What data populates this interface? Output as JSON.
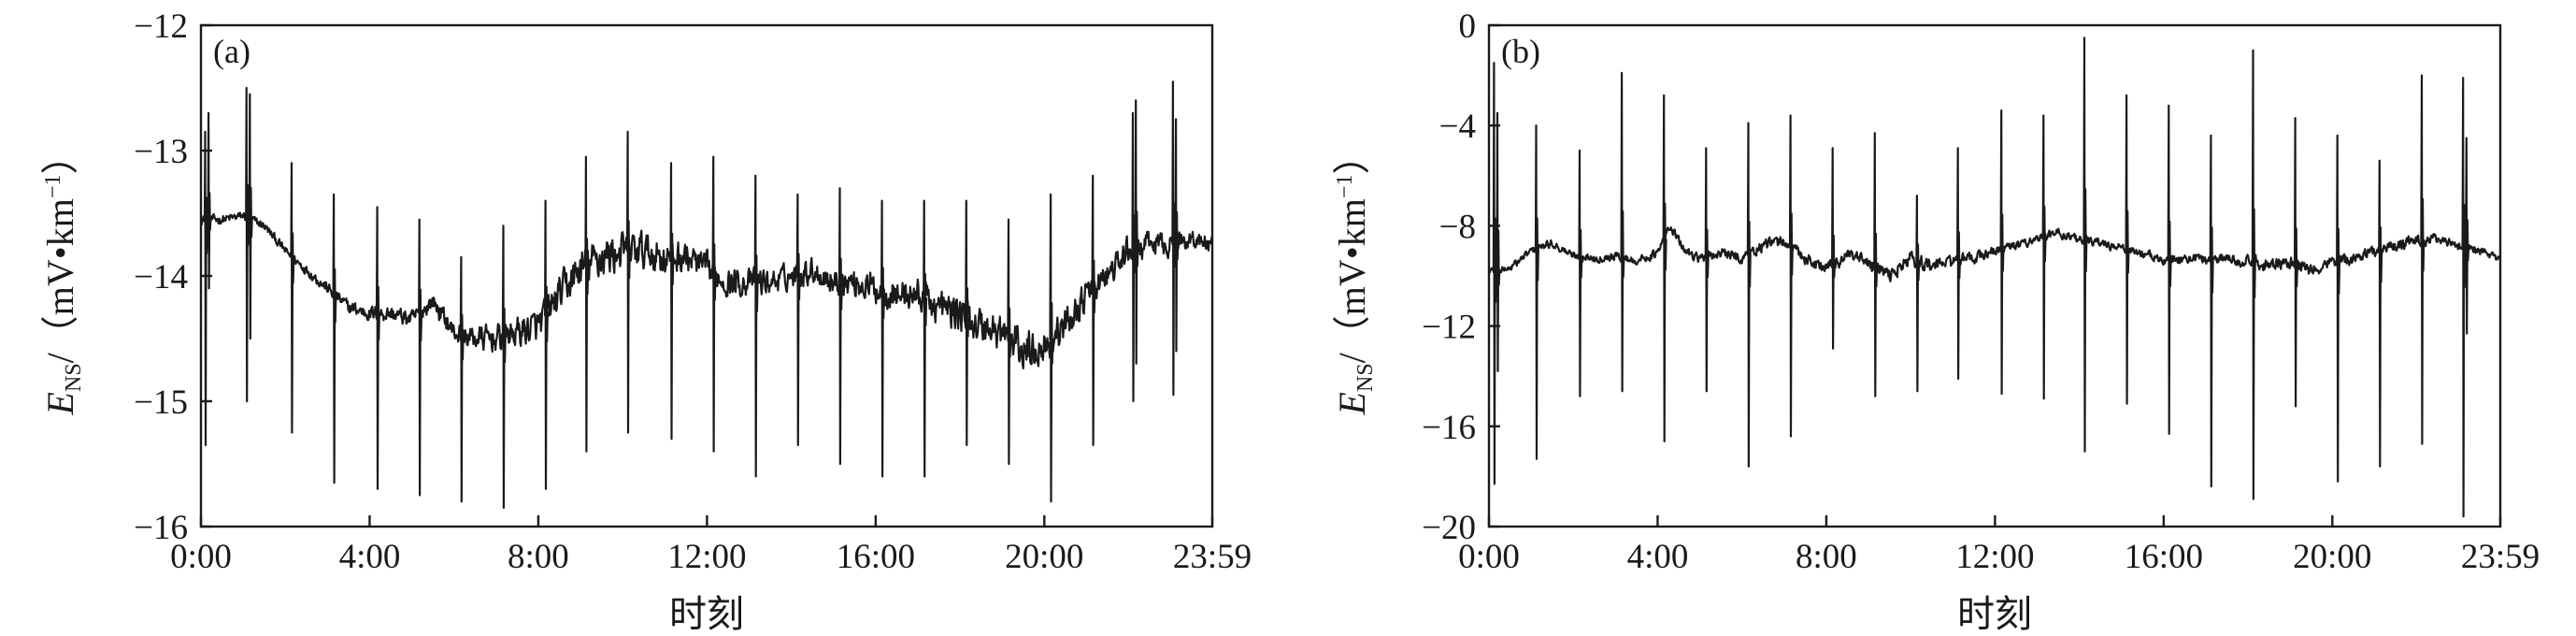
{
  "chart_data": [
    {
      "type": "line",
      "panel_label": "(a)",
      "xlabel": "时刻",
      "ylabel": {
        "main": "E",
        "sub": "NS",
        "rest": "/（mV•km",
        "sup": "−1",
        "close": "）"
      },
      "x_ticks": [
        "0:00",
        "4:00",
        "8:00",
        "12:00",
        "16:00",
        "20:00",
        "23:59"
      ],
      "x_tick_hours": [
        0,
        4,
        8,
        12,
        16,
        20,
        23.983
      ],
      "xlim": [
        0,
        23.983
      ],
      "y_ticks": [
        "−12",
        "−13",
        "−14",
        "−15",
        "−16"
      ],
      "y_tick_values": [
        -12,
        -13,
        -14,
        -15,
        -16
      ],
      "ylim": [
        -16,
        -12
      ],
      "baseline": [
        [
          0.0,
          -13.55
        ],
        [
          0.5,
          -13.55
        ],
        [
          1.0,
          -13.52
        ],
        [
          1.5,
          -13.6
        ],
        [
          2.0,
          -13.8
        ],
        [
          2.5,
          -13.95
        ],
        [
          3.0,
          -14.1
        ],
        [
          3.5,
          -14.25
        ],
        [
          4.0,
          -14.3
        ],
        [
          4.5,
          -14.3
        ],
        [
          5.0,
          -14.35
        ],
        [
          5.5,
          -14.2
        ],
        [
          6.0,
          -14.45
        ],
        [
          6.5,
          -14.5
        ],
        [
          7.0,
          -14.5
        ],
        [
          7.5,
          -14.45
        ],
        [
          8.0,
          -14.4
        ],
        [
          8.5,
          -14.15
        ],
        [
          9.0,
          -13.95
        ],
        [
          9.5,
          -13.85
        ],
        [
          10.0,
          -13.8
        ],
        [
          10.5,
          -13.8
        ],
        [
          11.0,
          -13.85
        ],
        [
          11.5,
          -13.85
        ],
        [
          12.0,
          -13.95
        ],
        [
          12.5,
          -14.05
        ],
        [
          13.0,
          -14.05
        ],
        [
          13.5,
          -14.05
        ],
        [
          14.0,
          -14.0
        ],
        [
          14.5,
          -13.95
        ],
        [
          15.0,
          -14.05
        ],
        [
          15.5,
          -14.05
        ],
        [
          16.0,
          -14.1
        ],
        [
          16.5,
          -14.15
        ],
        [
          17.0,
          -14.15
        ],
        [
          17.5,
          -14.25
        ],
        [
          18.0,
          -14.3
        ],
        [
          18.5,
          -14.4
        ],
        [
          19.0,
          -14.45
        ],
        [
          19.5,
          -14.6
        ],
        [
          20.0,
          -14.55
        ],
        [
          20.5,
          -14.4
        ],
        [
          21.0,
          -14.15
        ],
        [
          21.5,
          -14.0
        ],
        [
          22.0,
          -13.8
        ],
        [
          22.5,
          -13.75
        ],
        [
          23.0,
          -13.75
        ],
        [
          23.5,
          -13.7
        ],
        [
          23.98,
          -13.75
        ]
      ],
      "noise_amplitude": [
        [
          0,
          0.03
        ],
        [
          2,
          0.03
        ],
        [
          4,
          0.05
        ],
        [
          5.5,
          0.06
        ],
        [
          7,
          0.09
        ],
        [
          8.5,
          0.12
        ],
        [
          9.5,
          0.14
        ],
        [
          11,
          0.12
        ],
        [
          12,
          0.1
        ],
        [
          14,
          0.08
        ],
        [
          16,
          0.1
        ],
        [
          18,
          0.12
        ],
        [
          19.5,
          0.13
        ],
        [
          21,
          0.1
        ],
        [
          22.5,
          0.08
        ],
        [
          23.98,
          0.06
        ]
      ],
      "spikes": [
        {
          "t": 0.1,
          "peak": -12.85,
          "trough": -15.35
        },
        {
          "t": 0.18,
          "peak": -12.7,
          "trough": -14.1
        },
        {
          "t": 1.08,
          "peak": -12.5,
          "trough": -15.0
        },
        {
          "t": 1.16,
          "peak": -12.55,
          "trough": -14.5
        },
        {
          "t": 2.15,
          "peak": -13.1,
          "trough": -15.25
        },
        {
          "t": 3.15,
          "peak": -13.35,
          "trough": -15.65
        },
        {
          "t": 4.18,
          "peak": -13.45,
          "trough": -15.7
        },
        {
          "t": 5.18,
          "peak": -13.55,
          "trough": -15.75
        },
        {
          "t": 6.17,
          "peak": -13.85,
          "trough": -15.8
        },
        {
          "t": 7.17,
          "peak": -13.6,
          "trough": -15.85
        },
        {
          "t": 8.17,
          "peak": -13.4,
          "trough": -15.7
        },
        {
          "t": 9.13,
          "peak": -13.05,
          "trough": -15.4
        },
        {
          "t": 10.12,
          "peak": -12.85,
          "trough": -15.25
        },
        {
          "t": 11.15,
          "peak": -13.1,
          "trough": -15.3
        },
        {
          "t": 12.15,
          "peak": -13.05,
          "trough": -15.4
        },
        {
          "t": 13.15,
          "peak": -13.2,
          "trough": -15.6
        },
        {
          "t": 14.15,
          "peak": -13.35,
          "trough": -15.35
        },
        {
          "t": 15.15,
          "peak": -13.3,
          "trough": -15.5
        },
        {
          "t": 16.15,
          "peak": -13.4,
          "trough": -15.6
        },
        {
          "t": 17.15,
          "peak": -13.4,
          "trough": -15.6
        },
        {
          "t": 18.15,
          "peak": -13.4,
          "trough": -15.35
        },
        {
          "t": 19.15,
          "peak": -13.55,
          "trough": -15.5
        },
        {
          "t": 20.15,
          "peak": -13.35,
          "trough": -15.8
        },
        {
          "t": 21.15,
          "peak": -13.2,
          "trough": -15.35
        },
        {
          "t": 22.1,
          "peak": -12.7,
          "trough": -15.0
        },
        {
          "t": 22.17,
          "peak": -12.6,
          "trough": -14.7
        },
        {
          "t": 23.05,
          "peak": -12.45,
          "trough": -14.95
        },
        {
          "t": 23.12,
          "peak": -12.75,
          "trough": -14.6
        }
      ]
    },
    {
      "type": "line",
      "panel_label": "(b)",
      "xlabel": "时刻",
      "ylabel": {
        "main": "E",
        "sub": "NS",
        "rest": "/（mV•km",
        "sup": "−1",
        "close": "）"
      },
      "x_ticks": [
        "0:00",
        "4:00",
        "8:00",
        "12:00",
        "16:00",
        "20:00",
        "23:59"
      ],
      "x_tick_hours": [
        0,
        4,
        8,
        12,
        16,
        20,
        23.983
      ],
      "xlim": [
        0,
        23.983
      ],
      "y_ticks": [
        "0",
        "−4",
        "−8",
        "−12",
        "−16",
        "−20"
      ],
      "y_tick_values": [
        0,
        -4,
        -8,
        -12,
        -16,
        -20
      ],
      "ylim": [
        -20,
        0
      ],
      "baseline": [
        [
          0.0,
          -9.8
        ],
        [
          0.5,
          -9.7
        ],
        [
          1.0,
          -9.0
        ],
        [
          1.5,
          -8.7
        ],
        [
          2.0,
          -9.2
        ],
        [
          2.5,
          -9.3
        ],
        [
          3.0,
          -9.2
        ],
        [
          3.5,
          -9.4
        ],
        [
          4.0,
          -9.1
        ],
        [
          4.3,
          -8.0
        ],
        [
          4.6,
          -8.9
        ],
        [
          5.0,
          -9.3
        ],
        [
          5.5,
          -9.1
        ],
        [
          6.0,
          -9.3
        ],
        [
          6.5,
          -8.8
        ],
        [
          7.0,
          -8.6
        ],
        [
          7.5,
          -9.3
        ],
        [
          8.0,
          -9.7
        ],
        [
          8.5,
          -9.2
        ],
        [
          9.0,
          -9.5
        ],
        [
          9.5,
          -10.0
        ],
        [
          10.0,
          -9.3
        ],
        [
          10.5,
          -9.6
        ],
        [
          11.0,
          -9.4
        ],
        [
          11.5,
          -9.3
        ],
        [
          12.0,
          -9.0
        ],
        [
          12.5,
          -8.8
        ],
        [
          13.0,
          -8.5
        ],
        [
          13.5,
          -8.3
        ],
        [
          14.0,
          -8.5
        ],
        [
          14.5,
          -8.7
        ],
        [
          15.0,
          -8.9
        ],
        [
          15.5,
          -9.1
        ],
        [
          16.0,
          -9.4
        ],
        [
          16.5,
          -9.3
        ],
        [
          17.0,
          -9.3
        ],
        [
          17.5,
          -9.3
        ],
        [
          18.0,
          -9.4
        ],
        [
          18.5,
          -9.6
        ],
        [
          19.0,
          -9.5
        ],
        [
          19.5,
          -9.8
        ],
        [
          20.0,
          -9.4
        ],
        [
          20.5,
          -9.3
        ],
        [
          21.0,
          -9.0
        ],
        [
          21.5,
          -8.8
        ],
        [
          22.0,
          -8.6
        ],
        [
          22.5,
          -8.5
        ],
        [
          23.0,
          -8.8
        ],
        [
          23.5,
          -9.0
        ],
        [
          23.98,
          -9.4
        ]
      ],
      "noise_amplitude": [
        [
          0,
          0.12
        ],
        [
          4,
          0.14
        ],
        [
          8,
          0.22
        ],
        [
          10,
          0.25
        ],
        [
          12,
          0.15
        ],
        [
          16,
          0.14
        ],
        [
          19,
          0.22
        ],
        [
          23.98,
          0.14
        ]
      ],
      "spikes": [
        {
          "t": 0.12,
          "peak": -1.5,
          "trough": -18.3
        },
        {
          "t": 0.2,
          "peak": -3.5,
          "trough": -13.8
        },
        {
          "t": 1.12,
          "peak": -4.0,
          "trough": -17.3
        },
        {
          "t": 2.15,
          "peak": -5.0,
          "trough": -14.8
        },
        {
          "t": 3.15,
          "peak": -1.9,
          "trough": -14.6
        },
        {
          "t": 4.15,
          "peak": -2.8,
          "trough": -16.6
        },
        {
          "t": 5.15,
          "peak": -4.9,
          "trough": -14.6
        },
        {
          "t": 6.15,
          "peak": -3.9,
          "trough": -17.6
        },
        {
          "t": 7.15,
          "peak": -3.6,
          "trough": -16.4
        },
        {
          "t": 8.15,
          "peak": -4.9,
          "trough": -12.9
        },
        {
          "t": 9.15,
          "peak": -4.3,
          "trough": -14.8
        },
        {
          "t": 10.15,
          "peak": -6.8,
          "trough": -14.6
        },
        {
          "t": 11.12,
          "peak": -4.9,
          "trough": -14.1
        },
        {
          "t": 12.15,
          "peak": -3.4,
          "trough": -14.7
        },
        {
          "t": 13.15,
          "peak": -3.6,
          "trough": -14.9
        },
        {
          "t": 14.12,
          "peak": -0.5,
          "trough": -17.0
        },
        {
          "t": 15.12,
          "peak": -2.8,
          "trough": -15.1
        },
        {
          "t": 16.12,
          "peak": -3.2,
          "trough": -16.3
        },
        {
          "t": 17.12,
          "peak": -4.4,
          "trough": -18.4
        },
        {
          "t": 18.12,
          "peak": -1.0,
          "trough": -18.9
        },
        {
          "t": 19.12,
          "peak": -3.7,
          "trough": -15.2
        },
        {
          "t": 20.12,
          "peak": -4.4,
          "trough": -18.2
        },
        {
          "t": 21.12,
          "peak": -5.4,
          "trough": -17.6
        },
        {
          "t": 22.12,
          "peak": -2.0,
          "trough": -16.7
        },
        {
          "t": 23.1,
          "peak": -2.1,
          "trough": -19.6
        },
        {
          "t": 23.18,
          "peak": -4.5,
          "trough": -12.3
        }
      ]
    }
  ]
}
